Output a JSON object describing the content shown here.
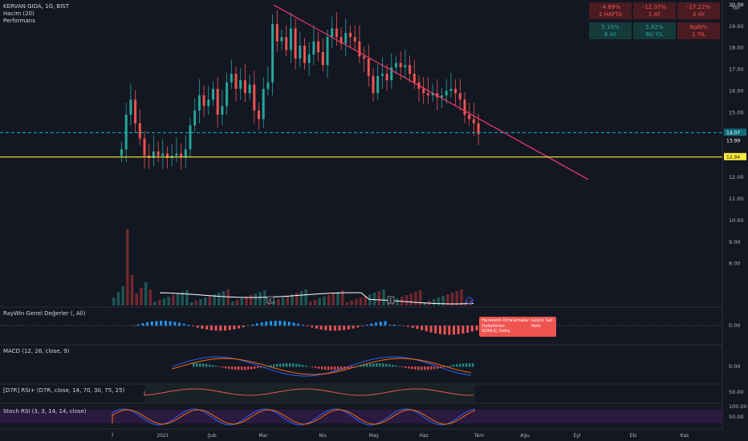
{
  "header": {
    "symbol_line": "KERVAN GIDA, 1G, BIST",
    "volume_label": "Hacim (20)",
    "performance_label": "Performans",
    "currency": "TRY"
  },
  "performance": [
    {
      "value": "-4.89%",
      "period": "1 HAFTA",
      "tone": "neg"
    },
    {
      "value": "-12.07%",
      "period": "1 AY",
      "tone": "neg"
    },
    {
      "value": "-17.22%",
      "period": "3 AY",
      "tone": "neg"
    },
    {
      "value": "5.19%",
      "period": "6 AY",
      "tone": "pos"
    },
    {
      "value": "5.82%",
      "period": "BU YIL",
      "tone": "pos"
    },
    {
      "value": "NaN%",
      "period": "1 YIL",
      "tone": "neg"
    }
  ],
  "panels": {
    "raywin": "RayWin Genel Değerler (, All)",
    "macd": "MACD (12, 26, close, 9)",
    "d7r": "[D7R] RSI+ (D7R, close, 14, 70, 30, 75, 25)",
    "stoch": "Stoch RSI (3, 3, 14, 14, close)"
  },
  "info_box": {
    "row1_label": "Hareketli Ortalamalar:",
    "row1_value": "Güçlü Sat",
    "row2_label": "Osilatörler:",
    "row2_value": "Nötr",
    "row3_label": "SONUÇ:",
    "row3_value": "Satış"
  },
  "colors": {
    "up": "#26a69a",
    "down": "#ef5350",
    "trendline": "#f23a6c",
    "support": "#ffeb3b",
    "current": "#00bcd4",
    "bg": "#131722"
  },
  "chart_data": {
    "type": "candlestick",
    "x_labels": [
      "7",
      "2021",
      "Şub",
      "Mar",
      "Nis",
      "May",
      "Haz",
      "Tem",
      "Ağu",
      "Eyl",
      "Eki",
      "Kas"
    ],
    "y_ticks": [
      "20.00",
      "19.00",
      "18.00",
      "17.00",
      "16.00",
      "15.00",
      "14.00",
      "13.00",
      "12.00",
      "11.00",
      "10.00",
      "9.00",
      "8.00"
    ],
    "ylim": [
      7.0,
      20.5
    ],
    "price_labels": {
      "current_box": "14.07",
      "last": "13.99",
      "support": "12.94"
    },
    "sub_ticks": {
      "raywin": "0.00",
      "macd": "0.00",
      "d7r": "50.00",
      "stoch_top": "100.00",
      "stoch_mid": "50.00"
    },
    "top_tick": "21.00",
    "top_right": "TRY",
    "closes": [
      13.3,
      14.9,
      15.6,
      14.5,
      13.8,
      13.0,
      12.9,
      13.2,
      13.0,
      13.1,
      12.9,
      13.0,
      13.1,
      12.95,
      13.3,
      14.4,
      15.1,
      15.8,
      15.3,
      15.6,
      16.1,
      14.9,
      15.3,
      16.4,
      16.8,
      16.1,
      16.5,
      15.9,
      16.3,
      15.1,
      14.7,
      16.1,
      16.4,
      19.1,
      18.3,
      18.5,
      17.9,
      18.9,
      17.5,
      18.1,
      17.3,
      17.7,
      18.3,
      17.8,
      17.2,
      18.5,
      18.9,
      18.5,
      18.2,
      18.7,
      18.5,
      18.3,
      17.6,
      17.5,
      16.7,
      15.9,
      16.7,
      16.8,
      16.5,
      17.1,
      17.3,
      17.1,
      17.2,
      16.8,
      16.4,
      16.1,
      15.9,
      15.8,
      15.9,
      15.7,
      15.8,
      16.0,
      16.1,
      15.9,
      15.6,
      14.9,
      14.7,
      14.5,
      13.99
    ]
  }
}
